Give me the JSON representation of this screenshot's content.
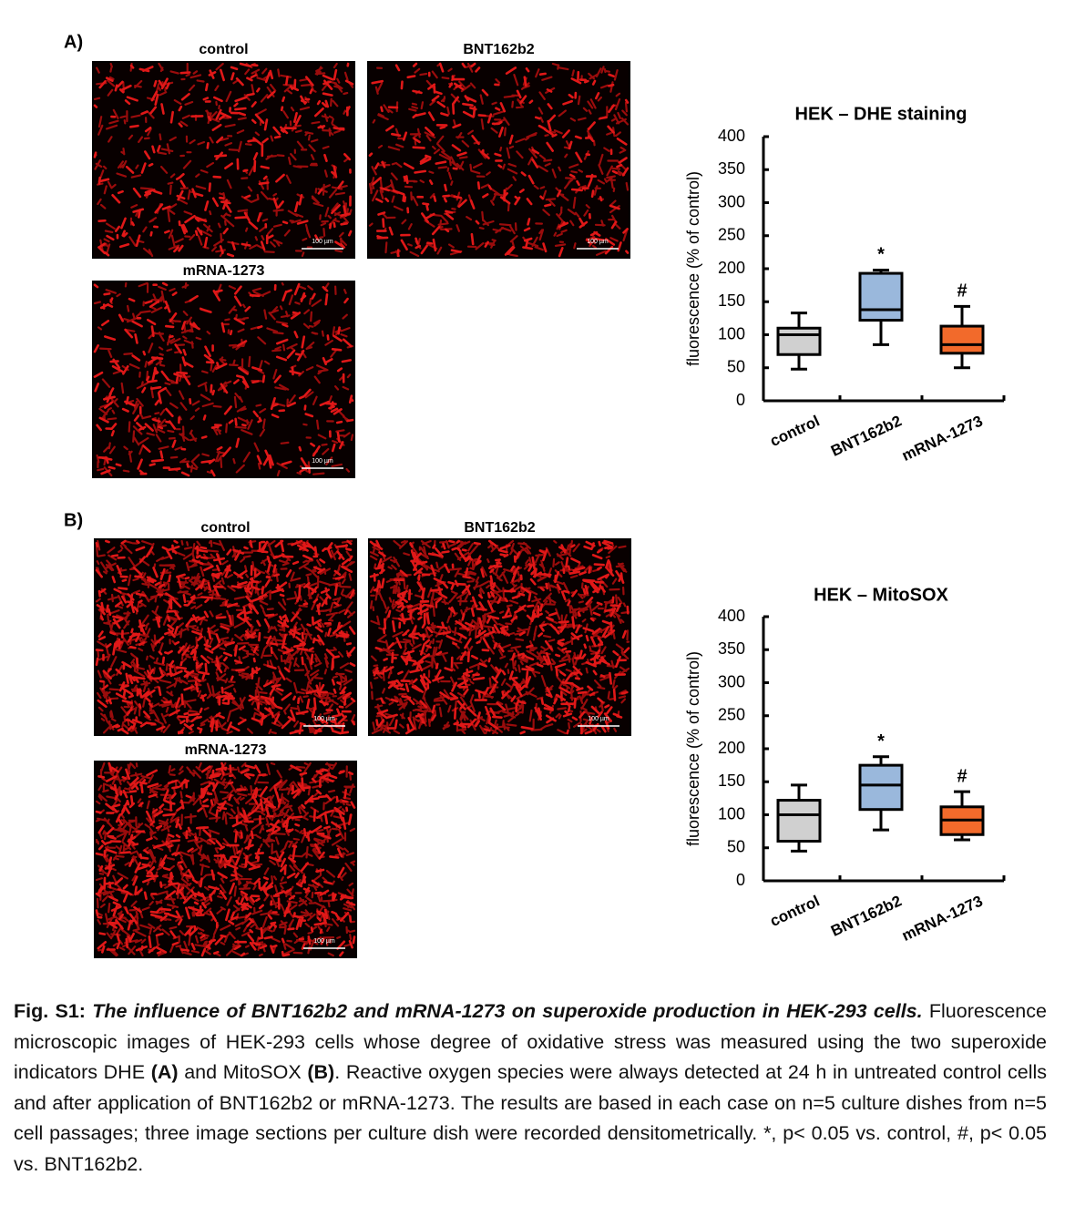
{
  "panels": [
    {
      "label": "A)",
      "images": [
        {
          "title": "control",
          "scale_bar": "100 µm"
        },
        {
          "title": "BNT162b2",
          "scale_bar": "100 µm"
        },
        {
          "title": "mRNA-1273",
          "scale_bar": "100 µm"
        }
      ]
    },
    {
      "label": "B)",
      "images": [
        {
          "title": "control",
          "scale_bar": "100 µm"
        },
        {
          "title": "BNT162b2",
          "scale_bar": "100 µm"
        },
        {
          "title": "mRNA-1273",
          "scale_bar": "100 µm"
        }
      ]
    }
  ],
  "chart_data": [
    {
      "type": "box",
      "title": "HEK – DHE staining",
      "y_label": "fluorescence (% of control)",
      "categories": [
        "control",
        "BNT162b2",
        "mRNA-1273"
      ],
      "colors": [
        "#d0d0d0",
        "#9ab8dc",
        "#f26a2b"
      ],
      "boxes": [
        {
          "min": 48,
          "q1": 70,
          "median": 100,
          "q3": 110,
          "max": 133
        },
        {
          "min": 85,
          "q1": 122,
          "median": 138,
          "q3": 193,
          "max": 198
        },
        {
          "min": 50,
          "q1": 72,
          "median": 85,
          "q3": 113,
          "max": 143
        }
      ],
      "annotations": [
        null,
        "*",
        "#"
      ],
      "ylim": [
        0,
        400
      ],
      "yticks": [
        0,
        50,
        100,
        150,
        200,
        250,
        300,
        350,
        400
      ]
    },
    {
      "type": "box",
      "title": "HEK – MitoSOX",
      "y_label": "fluorescence (% of control)",
      "categories": [
        "control",
        "BNT162b2",
        "mRNA-1273"
      ],
      "colors": [
        "#d0d0d0",
        "#9ab8dc",
        "#f26a2b"
      ],
      "boxes": [
        {
          "min": 45,
          "q1": 60,
          "median": 100,
          "q3": 122,
          "max": 145
        },
        {
          "min": 77,
          "q1": 108,
          "median": 145,
          "q3": 175,
          "max": 188
        },
        {
          "min": 62,
          "q1": 70,
          "median": 92,
          "q3": 112,
          "max": 135
        }
      ],
      "annotations": [
        null,
        "*",
        "#"
      ],
      "ylim": [
        0,
        400
      ],
      "yticks": [
        0,
        50,
        100,
        150,
        200,
        250,
        300,
        350,
        400
      ]
    }
  ],
  "caption": {
    "label": "Fig. S1:",
    "title": "The influence of BNT162b2 and mRNA-1273 on superoxide production in HEK-293 cells.",
    "body": [
      "Fluorescence microscopic images of HEK-293 cells whose degree of oxidative stress was measured using the two superoxide indicators DHE",
      "(A)",
      "and MitoSOX",
      "(B)",
      ". Reactive oxygen species were always detected at 24 h in untreated control cells and after application of BNT162b2 or mRNA-1273. The results are based in each case on n=5 culture dishes from n=5 cell passages; three image sections per culture dish were recorded densitometrically. *, p< 0.05 vs. control, #, p< 0.05 vs. BNT162b2."
    ]
  }
}
